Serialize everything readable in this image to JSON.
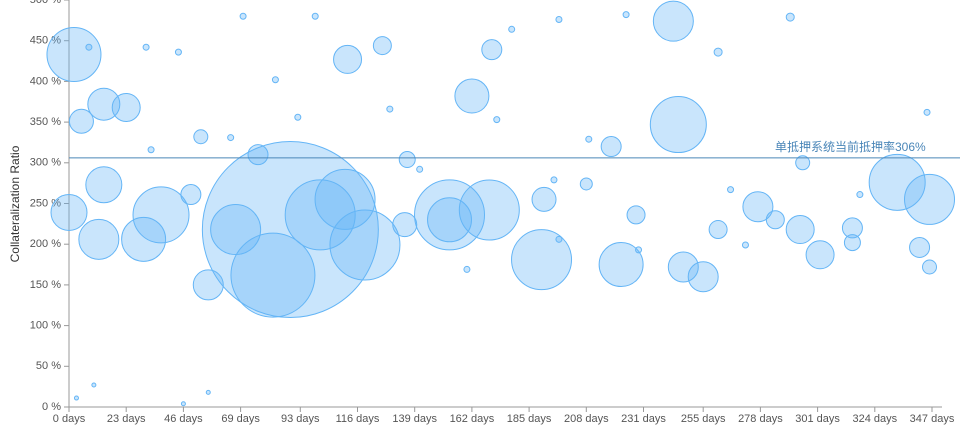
{
  "chart_data": {
    "type": "scatter",
    "y_label": "Collateralization Ratio",
    "xlim": [
      0,
      347
    ],
    "ylim": [
      0,
      500
    ],
    "xticks": [
      {
        "value": 0,
        "label": "0 days"
      },
      {
        "value": 23,
        "label": "23 days"
      },
      {
        "value": 46,
        "label": "46 days"
      },
      {
        "value": 69,
        "label": "69 days"
      },
      {
        "value": 93,
        "label": "93 days"
      },
      {
        "value": 116,
        "label": "116 days"
      },
      {
        "value": 139,
        "label": "139 days"
      },
      {
        "value": 162,
        "label": "162 days"
      },
      {
        "value": 185,
        "label": "185 days"
      },
      {
        "value": 208,
        "label": "208 days"
      },
      {
        "value": 231,
        "label": "231 days"
      },
      {
        "value": 255,
        "label": "255 days"
      },
      {
        "value": 278,
        "label": "278 days"
      },
      {
        "value": 301,
        "label": "301 days"
      },
      {
        "value": 324,
        "label": "324 days"
      },
      {
        "value": 347,
        "label": "347 days"
      }
    ],
    "yticks": [
      {
        "value": 0,
        "label": "0 %"
      },
      {
        "value": 50,
        "label": "50 %"
      },
      {
        "value": 100,
        "label": "100 %"
      },
      {
        "value": 150,
        "label": "150 %"
      },
      {
        "value": 200,
        "label": "200 %"
      },
      {
        "value": 250,
        "label": "250 %"
      },
      {
        "value": 300,
        "label": "300 %"
      },
      {
        "value": 350,
        "label": "350 %"
      },
      {
        "value": 400,
        "label": "400 %"
      },
      {
        "value": 450,
        "label": "450 %"
      },
      {
        "value": 500,
        "label": "500 %"
      }
    ],
    "grid": false,
    "reference_line": {
      "value": 306,
      "label": "单抵押系统当前抵押率306%",
      "color": "#4a86b8"
    },
    "series": [
      {
        "color": "#64b5f6",
        "x": [
          89,
          82,
          2,
          153,
          153,
          169,
          119,
          37,
          245,
          243,
          190,
          333,
          346,
          222,
          162,
          112,
          126,
          14,
          56,
          255,
          247,
          277,
          294,
          302,
          0,
          14,
          67,
          101,
          111,
          12,
          30,
          170,
          218,
          191,
          135,
          315,
          315,
          342,
          23,
          5,
          76,
          49,
          228,
          261,
          136,
          53,
          284,
          208,
          346,
          295,
          8,
          70,
          99,
          197,
          224,
          290,
          178,
          261,
          345,
          209,
          172,
          141,
          129,
          46,
          56,
          3,
          10,
          31,
          44,
          83,
          65,
          92,
          195,
          229,
          272,
          318,
          266,
          33,
          197,
          160
        ],
        "values": [
          218,
          162,
          433,
          236,
          230,
          242,
          199,
          236,
          347,
          474,
          181,
          276,
          255,
          175,
          382,
          427,
          444,
          372,
          150,
          160,
          172,
          246,
          218,
          187,
          239,
          273,
          218,
          236,
          255,
          206,
          206,
          439,
          320,
          255,
          224,
          220,
          202,
          196,
          368,
          351,
          310,
          261,
          236,
          218,
          304,
          332,
          230,
          274,
          172,
          300,
          442,
          480,
          480,
          476,
          482,
          479,
          464,
          436,
          362,
          329,
          353,
          292,
          366,
          4,
          18,
          11,
          27,
          442,
          436,
          402,
          331,
          356,
          279,
          193,
          199,
          261,
          267,
          316,
          206,
          169
        ],
        "sizes": [
          88,
          42,
          27,
          35,
          22,
          30,
          35,
          28,
          28,
          20,
          30,
          28,
          25,
          22,
          17,
          14,
          9,
          16,
          15,
          15,
          15,
          15,
          14,
          14,
          18,
          18,
          25,
          35,
          30,
          20,
          22,
          10,
          10,
          12,
          12,
          10,
          8,
          10,
          14,
          12,
          10,
          10,
          9,
          9,
          8,
          7,
          9,
          6,
          7,
          7,
          3,
          3,
          3,
          3,
          3,
          4,
          3,
          4,
          3,
          3,
          3,
          3,
          3,
          2,
          2,
          2,
          2,
          3,
          3,
          3,
          3,
          3,
          3,
          3,
          3,
          3,
          3,
          3,
          3,
          3
        ]
      }
    ]
  }
}
